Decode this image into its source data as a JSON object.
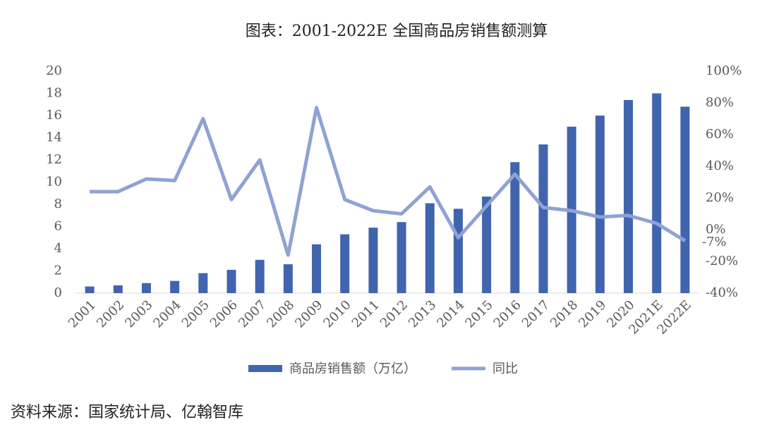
{
  "chart_data": {
    "type": "combo",
    "title": "图表：2001-2022E 全国商品房销售额测算",
    "categories": [
      "2001",
      "2002",
      "2003",
      "2004",
      "2005",
      "2006",
      "2007",
      "2008",
      "2009",
      "2010",
      "2011",
      "2012",
      "2013",
      "2014",
      "2015",
      "2016",
      "2017",
      "2018",
      "2019",
      "2020",
      "2021E",
      "2022E"
    ],
    "series": [
      {
        "name": "商品房销售额（万亿）",
        "type": "bar",
        "color": "#4064ae",
        "values": [
          0.6,
          0.7,
          0.9,
          1.1,
          1.8,
          2.1,
          3.0,
          2.6,
          4.4,
          5.3,
          5.9,
          6.4,
          8.1,
          7.6,
          8.7,
          11.8,
          13.4,
          15.0,
          16.0,
          17.4,
          18.0,
          16.8
        ]
      },
      {
        "name": "同比",
        "type": "line",
        "axis": "y2",
        "color": "#8fa2d4",
        "values": [
          24,
          24,
          32,
          31,
          70,
          19,
          44,
          -16,
          77,
          19,
          12,
          10,
          27,
          -5,
          15,
          35,
          14,
          12,
          8,
          9,
          4,
          -7
        ],
        "value_labels": [
          null,
          null,
          null,
          null,
          null,
          null,
          null,
          null,
          null,
          null,
          null,
          null,
          null,
          null,
          null,
          null,
          null,
          null,
          null,
          null,
          null,
          "-7%"
        ]
      }
    ],
    "ylim": [
      0,
      20
    ],
    "yticks": [
      0,
      2,
      4,
      6,
      8,
      10,
      12,
      14,
      16,
      18,
      20
    ],
    "y2lim": [
      -40,
      100
    ],
    "y2ticks": [
      {
        "value": -40,
        "label": "-40%"
      },
      {
        "value": -20,
        "label": "-20%"
      },
      {
        "value": 0,
        "label": "0%"
      },
      {
        "value": 20,
        "label": "20%"
      },
      {
        "value": 40,
        "label": "40%"
      },
      {
        "value": 60,
        "label": "60%"
      },
      {
        "value": 80,
        "label": "80%"
      },
      {
        "value": 100,
        "label": "100%"
      }
    ],
    "grid": false,
    "legend": "bottom",
    "source": "资料来源：国家统计局、亿翰智库"
  }
}
